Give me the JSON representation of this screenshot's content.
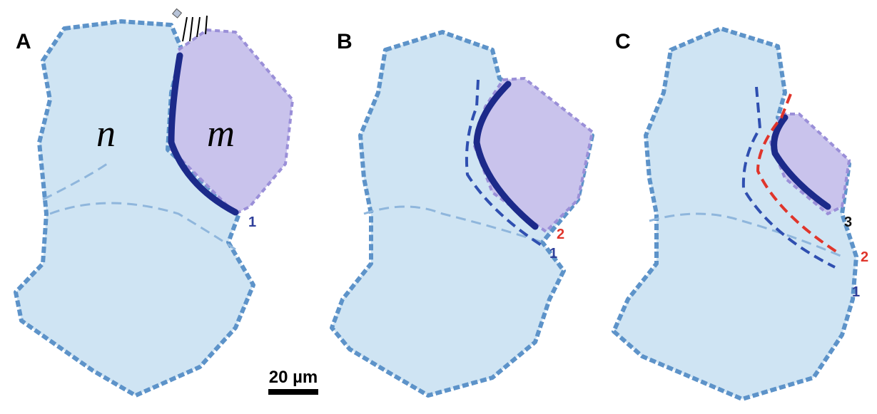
{
  "panels": [
    {
      "label": "A",
      "annotations": [
        "n",
        "m",
        "1"
      ]
    },
    {
      "label": "B",
      "annotations": [
        "2",
        "1"
      ]
    },
    {
      "label": "C",
      "annotations": [
        "3",
        "2",
        "1"
      ]
    }
  ],
  "scale_bar": "20 µm"
}
